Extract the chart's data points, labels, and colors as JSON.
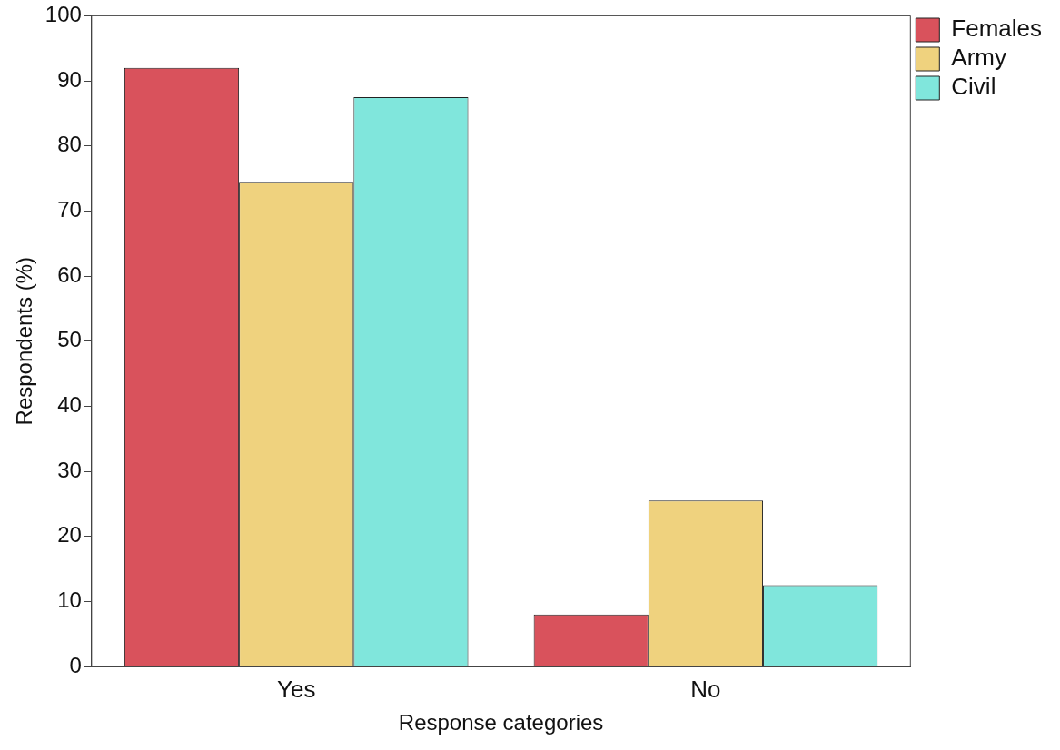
{
  "chart_data": {
    "type": "bar",
    "xlabel": "Response categories",
    "ylabel": "Respondents (%)",
    "categories": [
      "Yes",
      "No"
    ],
    "series": [
      {
        "name": "Females",
        "color": "#d9525c",
        "values": [
          92,
          8
        ]
      },
      {
        "name": "Army",
        "color": "#efd27e",
        "values": [
          74.5,
          25.5
        ]
      },
      {
        "name": "Civil",
        "color": "#80e6dc",
        "values": [
          87.5,
          12.5
        ]
      }
    ],
    "ylim": [
      0,
      100
    ],
    "yticks": [
      0,
      10,
      20,
      30,
      40,
      50,
      60,
      70,
      80,
      90,
      100
    ],
    "grid": false,
    "legend": "top right"
  }
}
